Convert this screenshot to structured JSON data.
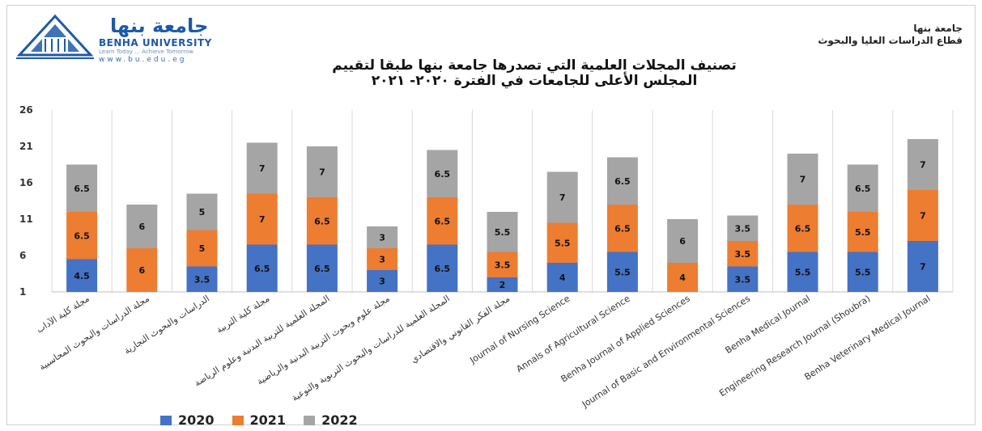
{
  "header": {
    "logo_arabic": "جامعة بنها",
    "logo_english": "BENHA UNIVERSITY",
    "logo_tagline": "Learn Today ... Achieve Tomorrow",
    "logo_url": "www.bu.edu.eg",
    "org_line1": "جامعة بنها",
    "org_line2": "قطاع الدراسات العليا والبحوث"
  },
  "chart_data": {
    "type": "bar",
    "stacked": true,
    "title_line1": "تصنيف المجلات العلمية التي تصدرها جامعة بنها طبقا لتقييم",
    "title_line2": "المجلس الأعلى للجامعات في الفترة ٢٠٢٠- ٢٠٢١",
    "ylim": [
      1,
      26
    ],
    "yticks": [
      1,
      6,
      11,
      16,
      21,
      26
    ],
    "grid": "vertical category separators",
    "legend_position": "bottom-left",
    "categories": [
      "مجلة كلية الآداب",
      "مجلة الدراسات والبحوث المحاسبية",
      "الدراسات والبحوث التجارية",
      "مجلة كلية التربية",
      "المجلة العلمية للتربية البدنية وعلوم الرياضة",
      "مجلة علوم وبحوث التربية البدنية والرياضية",
      "المجلة العلمية للدراسات والبحوث التربوية والنوعية",
      "مجلة الفكر القانوني والاقتصادي",
      "Journal of Nursing Science",
      "Annals of Agricultural Science",
      "Benha Journal of Applied Sciences",
      "Journal of Basic and Environmental Sciences",
      "Benha Medical Journal",
      "Engineering Research Journal (Shoubra)",
      "Benha Veterinary Medical Journal"
    ],
    "series": [
      {
        "name": "2020",
        "color": "#4472C4",
        "values": [
          4.5,
          null,
          3.5,
          6.5,
          6.5,
          3,
          6.5,
          2,
          4,
          5.5,
          null,
          3.5,
          5.5,
          5.5,
          7
        ]
      },
      {
        "name": "2021",
        "color": "#ED7D31",
        "values": [
          6.5,
          6,
          5,
          7,
          6.5,
          3,
          6.5,
          3.5,
          5.5,
          6.5,
          4,
          3.5,
          6.5,
          5.5,
          7
        ]
      },
      {
        "name": "2022",
        "color": "#A5A5A5",
        "values": [
          6.5,
          6,
          5,
          7,
          7,
          3,
          6.5,
          5.5,
          7,
          6.5,
          6,
          3.5,
          7,
          6.5,
          7
        ]
      }
    ]
  }
}
